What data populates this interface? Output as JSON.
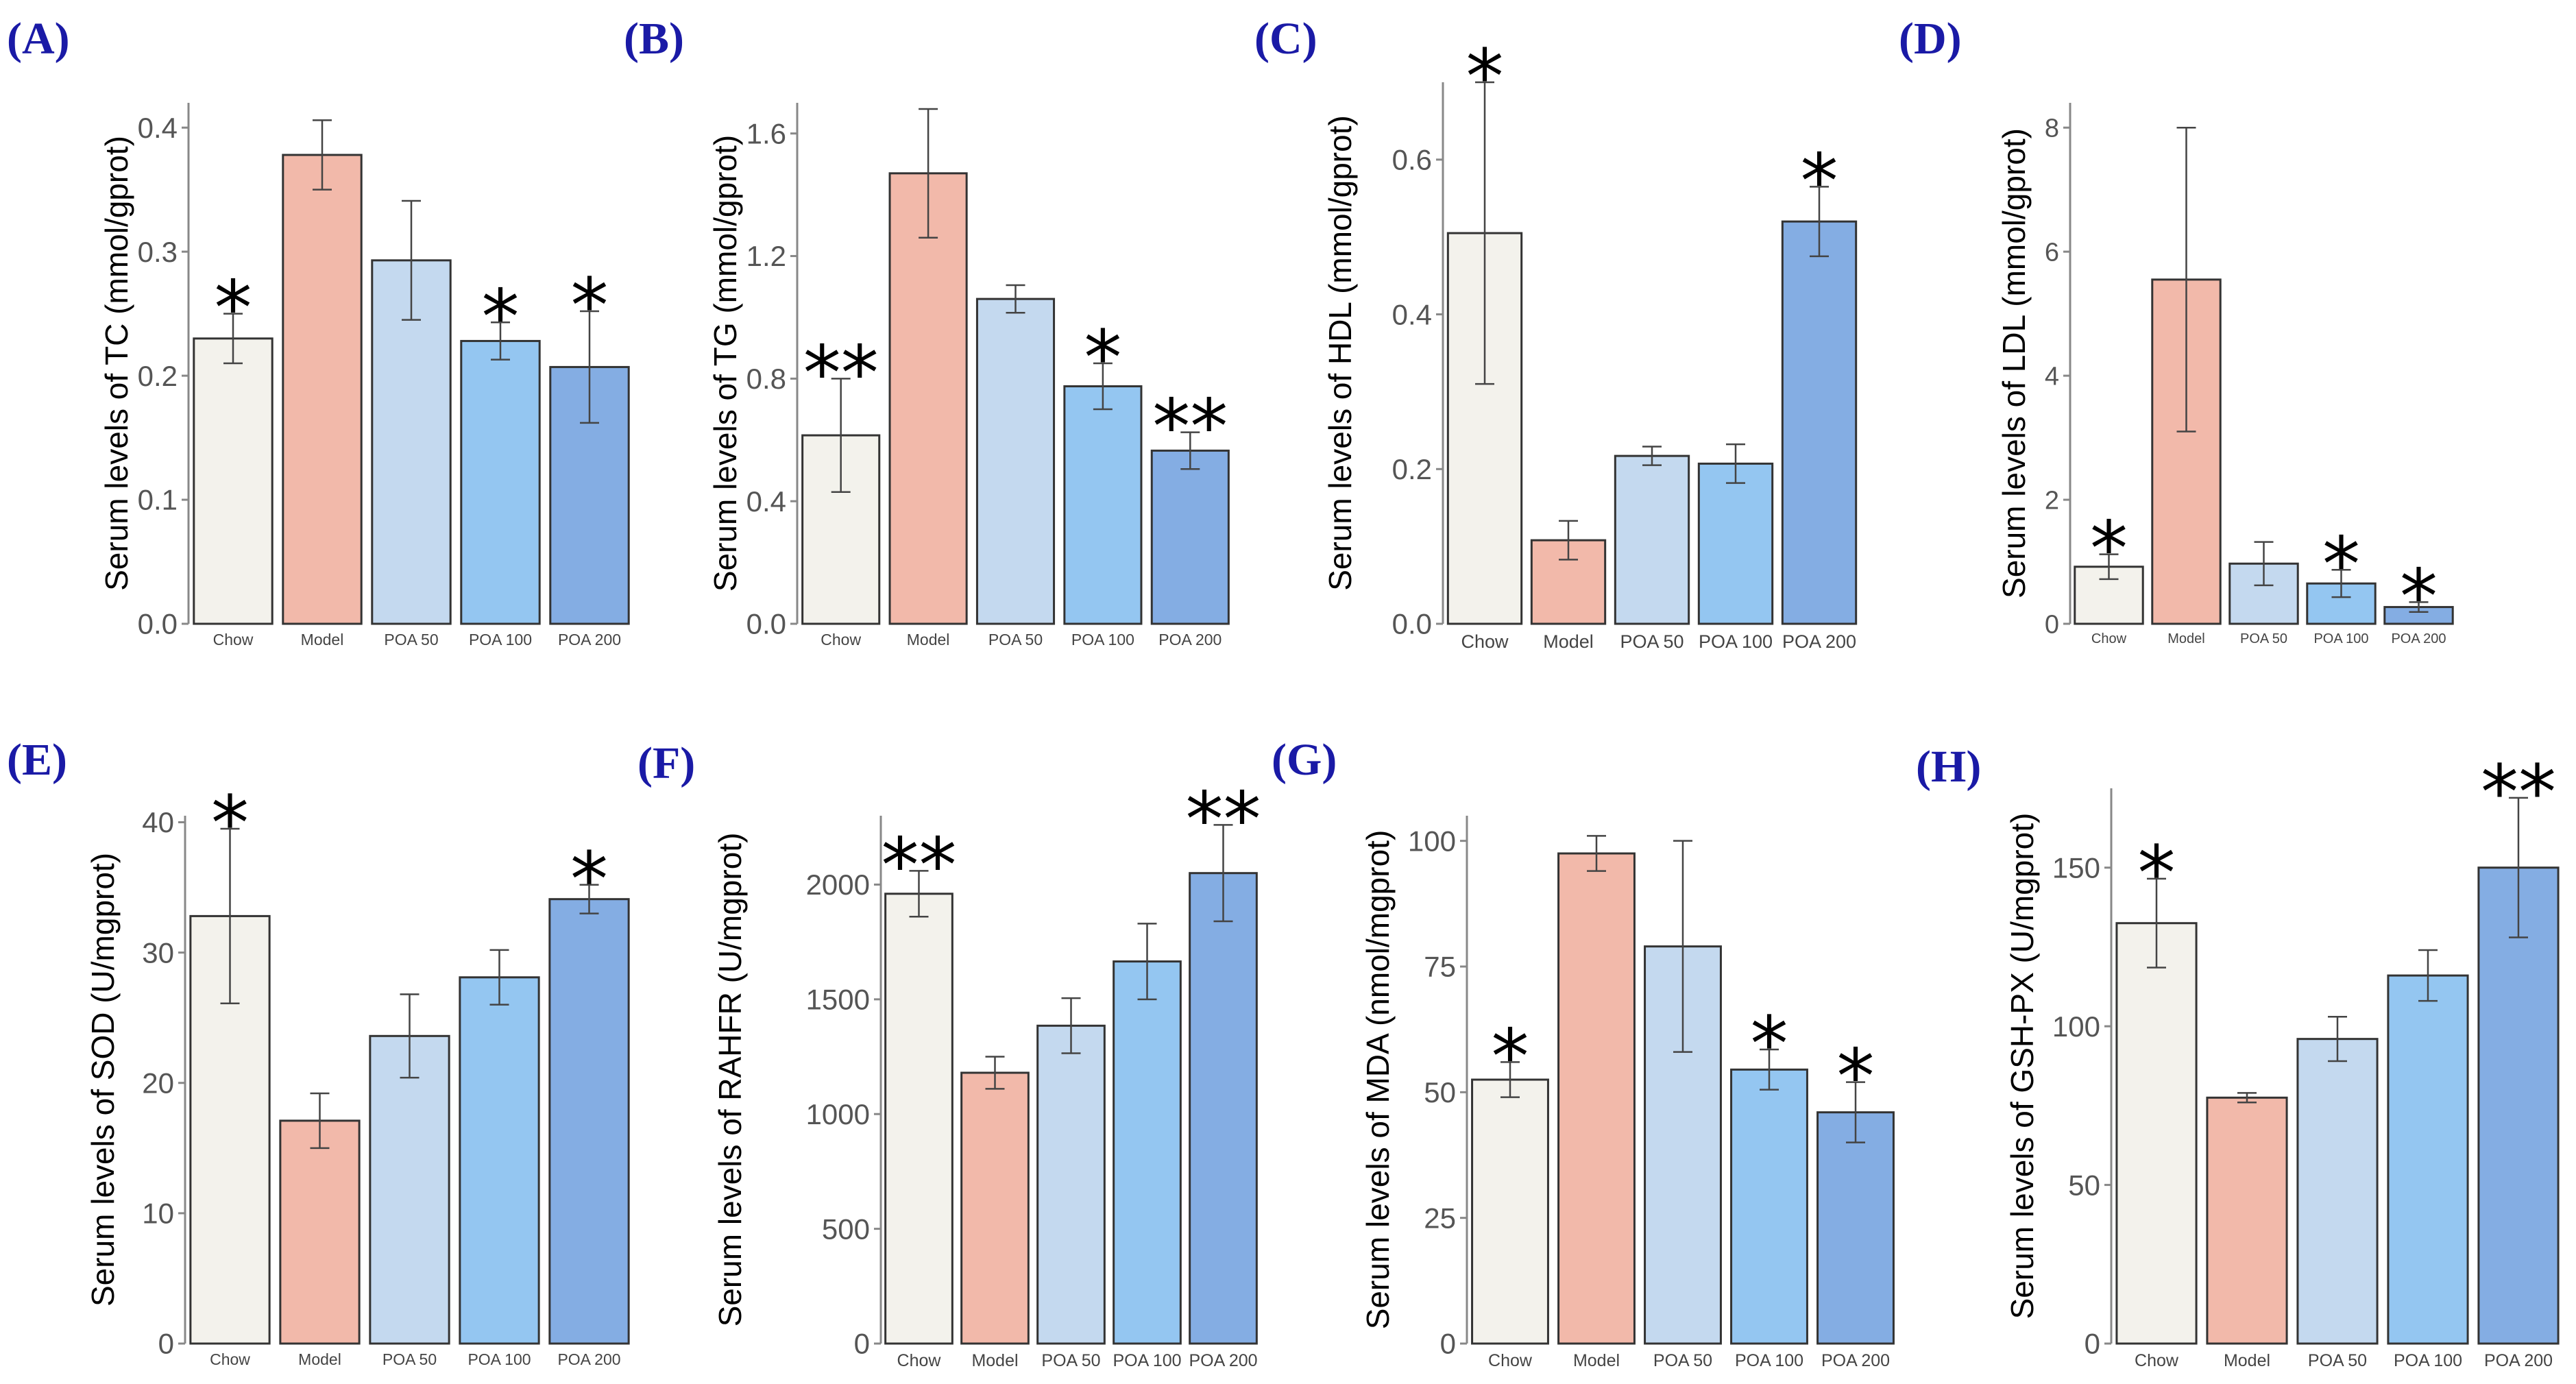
{
  "colors": {
    "label": "#1a1aa6",
    "bars": [
      "#f3f2ec",
      "#f2b9aa",
      "#c4d9ef",
      "#94c6f1",
      "#84ade3"
    ],
    "bar_stroke": "#333333",
    "error": "#444444"
  },
  "chart_data": [
    {
      "id": "A",
      "panel_label": "(A)",
      "type": "bar",
      "ylabel": "Serum levels of TC (mmol/gprot)",
      "ylim": [
        0,
        0.42
      ],
      "yticks": [
        0.0,
        0.1,
        0.2,
        0.3,
        0.4
      ],
      "tick_decimals": 1,
      "categories": [
        "Chow",
        "Model",
        "POA 50",
        "POA 100",
        "POA 200"
      ],
      "values": [
        0.23,
        0.378,
        0.293,
        0.228,
        0.207
      ],
      "errors": [
        0.02,
        0.028,
        0.048,
        0.015,
        0.045
      ],
      "significance": [
        "*",
        "",
        "",
        "*",
        "*"
      ]
    },
    {
      "id": "B",
      "panel_label": "(B)",
      "type": "bar",
      "ylabel": "Serum levels of TG (mmol/gprot)",
      "ylim": [
        0,
        1.7
      ],
      "yticks": [
        0.0,
        0.4,
        0.8,
        1.2,
        1.6
      ],
      "tick_decimals": 1,
      "categories": [
        "Chow",
        "Model",
        "POA 50",
        "POA 100",
        "POA 200"
      ],
      "values": [
        0.615,
        1.47,
        1.06,
        0.775,
        0.565
      ],
      "errors": [
        0.185,
        0.21,
        0.045,
        0.075,
        0.06
      ],
      "significance": [
        "**",
        "",
        "",
        "*",
        "**"
      ]
    },
    {
      "id": "C",
      "panel_label": "(C)",
      "type": "bar",
      "ylabel": "Serum levels of HDL (mmol/gprot)",
      "ylim": [
        0,
        0.7
      ],
      "yticks": [
        0.0,
        0.2,
        0.4,
        0.6
      ],
      "tick_decimals": 1,
      "categories": [
        "Chow",
        "Model",
        "POA 50",
        "POA 100",
        "POA 200"
      ],
      "values": [
        0.505,
        0.108,
        0.217,
        0.207,
        0.52
      ],
      "errors": [
        0.195,
        0.025,
        0.012,
        0.025,
        0.045
      ],
      "significance": [
        "*",
        "",
        "",
        "",
        "*"
      ]
    },
    {
      "id": "D",
      "panel_label": "(D)",
      "type": "bar",
      "ylabel": "Serum levels of LDL (mmol/gprot)",
      "ylim": [
        0,
        8.4
      ],
      "yticks": [
        0,
        2,
        4,
        6,
        8
      ],
      "tick_decimals": 0,
      "categories": [
        "Chow",
        "Model",
        "POA 50",
        "POA 100",
        "POA 200"
      ],
      "values": [
        0.92,
        5.55,
        0.97,
        0.65,
        0.27
      ],
      "errors": [
        0.2,
        2.45,
        0.35,
        0.22,
        0.08
      ],
      "significance": [
        "*",
        "",
        "",
        "*",
        "*"
      ]
    },
    {
      "id": "E",
      "panel_label": "(E)",
      "type": "bar",
      "ylabel": "Serum levels of SOD (U/mgprot)",
      "ylim": [
        0,
        40.5
      ],
      "yticks": [
        0,
        10,
        20,
        30,
        40
      ],
      "tick_decimals": 0,
      "categories": [
        "Chow",
        "Model",
        "POA 50",
        "POA 100",
        "POA 200"
      ],
      "values": [
        32.8,
        17.1,
        23.6,
        28.1,
        34.1
      ],
      "errors": [
        6.7,
        2.1,
        3.2,
        2.1,
        1.1
      ],
      "significance": [
        "*",
        "",
        "",
        "",
        "*"
      ]
    },
    {
      "id": "F",
      "panel_label": "(F)",
      "type": "bar",
      "ylabel": "Serum levels of RAHFR (U/mgprot)",
      "ylim": [
        0,
        2300
      ],
      "yticks": [
        0,
        500,
        1000,
        1500,
        2000
      ],
      "tick_decimals": 0,
      "categories": [
        "Chow",
        "Model",
        "POA 50",
        "POA 100",
        "POA 200"
      ],
      "values": [
        1960,
        1180,
        1385,
        1665,
        2050
      ],
      "errors": [
        100,
        70,
        120,
        165,
        210
      ],
      "significance": [
        "**",
        "",
        "",
        "",
        "**"
      ]
    },
    {
      "id": "G",
      "panel_label": "(G)",
      "type": "bar",
      "ylabel": "Serum levels of MDA (nmol/mgprot)",
      "ylim": [
        0,
        105
      ],
      "yticks": [
        0,
        25,
        50,
        75,
        100
      ],
      "tick_decimals": 0,
      "categories": [
        "Chow",
        "Model",
        "POA 50",
        "POA 100",
        "POA 200"
      ],
      "values": [
        52.5,
        97.5,
        79,
        54.5,
        46
      ],
      "errors": [
        3.5,
        3.5,
        21,
        4,
        6
      ],
      "significance": [
        "*",
        "",
        "",
        "*",
        "*"
      ]
    },
    {
      "id": "H",
      "panel_label": "(H)",
      "type": "bar",
      "ylabel": "Serum levels of GSH-PX (U/mgprot)",
      "ylim": [
        0,
        175
      ],
      "yticks": [
        0,
        50,
        100,
        150
      ],
      "tick_decimals": 0,
      "categories": [
        "Chow",
        "Model",
        "POA 50",
        "POA 100",
        "POA 200"
      ],
      "values": [
        132.5,
        77.5,
        96,
        116,
        150
      ],
      "errors": [
        14,
        1.5,
        7,
        8,
        22
      ],
      "significance": [
        "*",
        "",
        "",
        "",
        "**"
      ]
    }
  ]
}
